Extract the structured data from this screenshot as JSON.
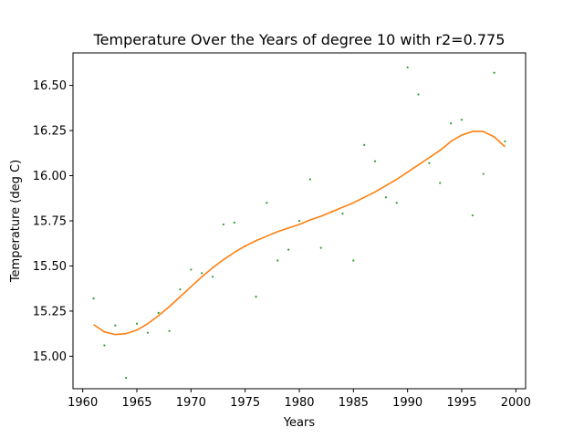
{
  "chart_data": {
    "type": "scatter",
    "title": "Temperature Over the Years of degree 10 with r2=0.775",
    "xlabel": "Years",
    "ylabel": "Temperature (deg C)",
    "xlim": [
      1959.1,
      2000.9
    ],
    "ylim": [
      14.82,
      16.68
    ],
    "xticks": [
      1960,
      1965,
      1970,
      1975,
      1980,
      1985,
      1990,
      1995,
      2000
    ],
    "xtick_labels": [
      "1960",
      "1965",
      "1970",
      "1975",
      "1980",
      "1985",
      "1990",
      "1995",
      "2000"
    ],
    "yticks": [
      15.0,
      15.25,
      15.5,
      15.75,
      16.0,
      16.25,
      16.5
    ],
    "ytick_labels": [
      "15.00",
      "15.25",
      "15.50",
      "15.75",
      "16.00",
      "16.25",
      "16.50"
    ],
    "grid": false,
    "series": [
      {
        "kind": "scatter",
        "color": "#2ca02c",
        "x": [
          1961,
          1962,
          1963,
          1964,
          1965,
          1966,
          1967,
          1968,
          1969,
          1970,
          1971,
          1972,
          1973,
          1974,
          1975,
          1976,
          1977,
          1978,
          1979,
          1980,
          1981,
          1982,
          1983,
          1984,
          1985,
          1986,
          1987,
          1988,
          1989,
          1990,
          1991,
          1992,
          1993,
          1994,
          1995,
          1996,
          1997,
          1998,
          1999
        ],
        "y": [
          15.32,
          15.06,
          15.17,
          14.88,
          15.18,
          15.13,
          15.24,
          15.14,
          15.37,
          15.48,
          15.46,
          15.44,
          15.73,
          15.74,
          15.61,
          15.33,
          15.85,
          15.53,
          15.59,
          15.75,
          15.98,
          15.6,
          15.8,
          15.79,
          15.53,
          16.17,
          16.08,
          15.88,
          15.85,
          16.6,
          16.45,
          16.07,
          15.96,
          16.29,
          16.31,
          15.78,
          16.01,
          16.57,
          16.19
        ]
      },
      {
        "kind": "line",
        "color": "#ff7f0e",
        "x": [
          1961,
          1962,
          1963,
          1964,
          1965,
          1966,
          1967,
          1968,
          1969,
          1970,
          1971,
          1972,
          1973,
          1974,
          1975,
          1976,
          1977,
          1978,
          1979,
          1980,
          1981,
          1982,
          1983,
          1984,
          1985,
          1986,
          1987,
          1988,
          1989,
          1990,
          1991,
          1992,
          1993,
          1994,
          1995,
          1996,
          1997,
          1998,
          1999
        ],
        "y": [
          15.175,
          15.135,
          15.12,
          15.125,
          15.145,
          15.18,
          15.225,
          15.275,
          15.33,
          15.385,
          15.44,
          15.49,
          15.535,
          15.575,
          15.61,
          15.64,
          15.665,
          15.69,
          15.71,
          15.73,
          15.755,
          15.775,
          15.8,
          15.825,
          15.85,
          15.88,
          15.91,
          15.945,
          15.98,
          16.02,
          16.06,
          16.1,
          16.14,
          16.19,
          16.225,
          16.245,
          16.245,
          16.215,
          16.16
        ]
      }
    ]
  }
}
